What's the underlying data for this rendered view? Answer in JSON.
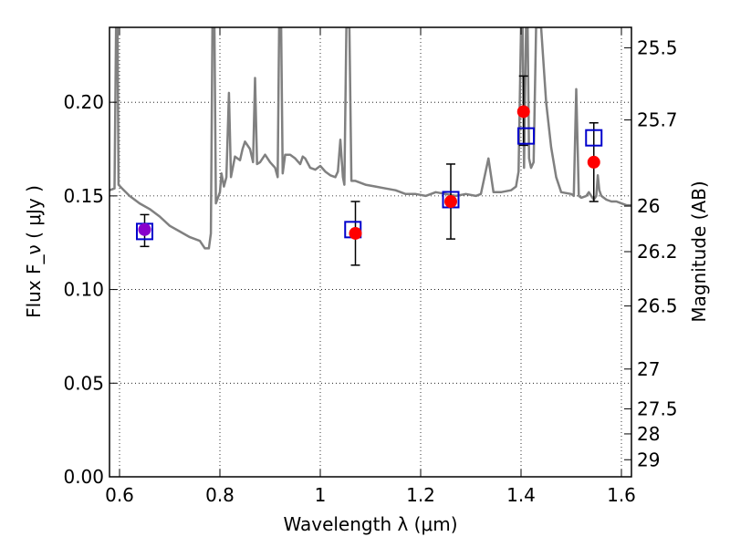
{
  "chart_data": {
    "type": "scatter",
    "xlabel": "Wavelength  λ (μm)",
    "ylabel": "Flux  F_ν  ( μJy )",
    "ylabel_right": "Magnitude (AB)",
    "xlim": [
      0.58,
      1.62
    ],
    "ylim": [
      0.0,
      0.24
    ],
    "grid": true,
    "x_ticks": [
      {
        "value": 0.6,
        "label": "0.6"
      },
      {
        "value": 0.8,
        "label": "0.8"
      },
      {
        "value": 1.0,
        "label": "1"
      },
      {
        "value": 1.2,
        "label": "1.2"
      },
      {
        "value": 1.4,
        "label": "1.4"
      },
      {
        "value": 1.6,
        "label": "1.6"
      }
    ],
    "y_ticks": [
      {
        "value": 0.0,
        "label": "0.00"
      },
      {
        "value": 0.05,
        "label": "0.05"
      },
      {
        "value": 0.1,
        "label": "0.10"
      },
      {
        "value": 0.15,
        "label": "0.15"
      },
      {
        "value": 0.2,
        "label": "0.20"
      }
    ],
    "mag_ticks": [
      {
        "value": 25.5,
        "label": "25.5"
      },
      {
        "value": 25.7,
        "label": "25.7"
      },
      {
        "value": 26.0,
        "label": "26"
      },
      {
        "value": 26.2,
        "label": "26.2"
      },
      {
        "value": 26.5,
        "label": "26.5"
      },
      {
        "value": 27.0,
        "label": "27"
      },
      {
        "value": 27.5,
        "label": "27.5"
      },
      {
        "value": 28.0,
        "label": "28"
      },
      {
        "value": 29.0,
        "label": "29"
      }
    ],
    "model_spectrum": {
      "color": "#808080",
      "points": [
        [
          0.58,
          0.153
        ],
        [
          0.59,
          0.154
        ],
        [
          0.593,
          0.24
        ],
        [
          0.596,
          0.24
        ],
        [
          0.598,
          0.156
        ],
        [
          0.605,
          0.154
        ],
        [
          0.62,
          0.15
        ],
        [
          0.64,
          0.146
        ],
        [
          0.66,
          0.143
        ],
        [
          0.68,
          0.139
        ],
        [
          0.7,
          0.134
        ],
        [
          0.72,
          0.131
        ],
        [
          0.74,
          0.128
        ],
        [
          0.76,
          0.126
        ],
        [
          0.77,
          0.122
        ],
        [
          0.778,
          0.122
        ],
        [
          0.782,
          0.13
        ],
        [
          0.785,
          0.24
        ],
        [
          0.789,
          0.24
        ],
        [
          0.792,
          0.146
        ],
        [
          0.8,
          0.152
        ],
        [
          0.803,
          0.162
        ],
        [
          0.808,
          0.155
        ],
        [
          0.813,
          0.16
        ],
        [
          0.818,
          0.205
        ],
        [
          0.822,
          0.16
        ],
        [
          0.83,
          0.171
        ],
        [
          0.84,
          0.169
        ],
        [
          0.845,
          0.175
        ],
        [
          0.85,
          0.179
        ],
        [
          0.86,
          0.175
        ],
        [
          0.866,
          0.168
        ],
        [
          0.87,
          0.213
        ],
        [
          0.874,
          0.167
        ],
        [
          0.88,
          0.168
        ],
        [
          0.89,
          0.172
        ],
        [
          0.9,
          0.168
        ],
        [
          0.91,
          0.165
        ],
        [
          0.915,
          0.16
        ],
        [
          0.918,
          0.24
        ],
        [
          0.922,
          0.24
        ],
        [
          0.925,
          0.162
        ],
        [
          0.93,
          0.172
        ],
        [
          0.94,
          0.172
        ],
        [
          0.95,
          0.17
        ],
        [
          0.96,
          0.167
        ],
        [
          0.965,
          0.171
        ],
        [
          0.97,
          0.17
        ],
        [
          0.98,
          0.165
        ],
        [
          0.99,
          0.164
        ],
        [
          1.0,
          0.166
        ],
        [
          1.01,
          0.163
        ],
        [
          1.02,
          0.161
        ],
        [
          1.03,
          0.16
        ],
        [
          1.035,
          0.163
        ],
        [
          1.04,
          0.18
        ],
        [
          1.045,
          0.16
        ],
        [
          1.048,
          0.156
        ],
        [
          1.052,
          0.24
        ],
        [
          1.058,
          0.24
        ],
        [
          1.062,
          0.158
        ],
        [
          1.07,
          0.158
        ],
        [
          1.09,
          0.156
        ],
        [
          1.11,
          0.155
        ],
        [
          1.13,
          0.154
        ],
        [
          1.15,
          0.153
        ],
        [
          1.17,
          0.151
        ],
        [
          1.19,
          0.151
        ],
        [
          1.21,
          0.15
        ],
        [
          1.23,
          0.152
        ],
        [
          1.25,
          0.151
        ],
        [
          1.27,
          0.15
        ],
        [
          1.29,
          0.151
        ],
        [
          1.31,
          0.15
        ],
        [
          1.32,
          0.151
        ],
        [
          1.335,
          0.17
        ],
        [
          1.345,
          0.152
        ],
        [
          1.36,
          0.152
        ],
        [
          1.38,
          0.153
        ],
        [
          1.39,
          0.155
        ],
        [
          1.395,
          0.163
        ],
        [
          1.4,
          0.24
        ],
        [
          1.403,
          0.24
        ],
        [
          1.406,
          0.165
        ],
        [
          1.41,
          0.24
        ],
        [
          1.413,
          0.24
        ],
        [
          1.416,
          0.17
        ],
        [
          1.42,
          0.165
        ],
        [
          1.425,
          0.168
        ],
        [
          1.43,
          0.24
        ],
        [
          1.44,
          0.24
        ],
        [
          1.45,
          0.2
        ],
        [
          1.46,
          0.176
        ],
        [
          1.47,
          0.16
        ],
        [
          1.48,
          0.152
        ],
        [
          1.5,
          0.151
        ],
        [
          1.505,
          0.15
        ],
        [
          1.51,
          0.207
        ],
        [
          1.515,
          0.15
        ],
        [
          1.52,
          0.149
        ],
        [
          1.53,
          0.15
        ],
        [
          1.535,
          0.152
        ],
        [
          1.54,
          0.15
        ],
        [
          1.545,
          0.148
        ],
        [
          1.55,
          0.15
        ],
        [
          1.553,
          0.161
        ],
        [
          1.556,
          0.153
        ],
        [
          1.56,
          0.15
        ],
        [
          1.57,
          0.148
        ],
        [
          1.58,
          0.147
        ],
        [
          1.59,
          0.147
        ],
        [
          1.6,
          0.146
        ],
        [
          1.61,
          0.145
        ],
        [
          1.62,
          0.145
        ]
      ]
    },
    "observed": [
      {
        "x": 0.65,
        "y": 0.132,
        "yerr_low": 0.009,
        "yerr_high": 0.008,
        "color": "#8800cc"
      },
      {
        "x": 1.07,
        "y": 0.13,
        "yerr_low": 0.017,
        "yerr_high": 0.017,
        "color": "#ff0000"
      },
      {
        "x": 1.26,
        "y": 0.147,
        "yerr_low": 0.02,
        "yerr_high": 0.02,
        "color": "#ff0000"
      },
      {
        "x": 1.405,
        "y": 0.195,
        "yerr_low": 0.018,
        "yerr_high": 0.019,
        "color": "#ff0000"
      },
      {
        "x": 1.545,
        "y": 0.168,
        "yerr_low": 0.021,
        "yerr_high": 0.021,
        "color": "#ff0000"
      }
    ],
    "model_photometry": {
      "color": "#0000cc",
      "points": [
        {
          "x": 0.65,
          "y": 0.131
        },
        {
          "x": 1.065,
          "y": 0.132
        },
        {
          "x": 1.26,
          "y": 0.148
        },
        {
          "x": 1.41,
          "y": 0.182
        },
        {
          "x": 1.545,
          "y": 0.181
        }
      ]
    }
  }
}
